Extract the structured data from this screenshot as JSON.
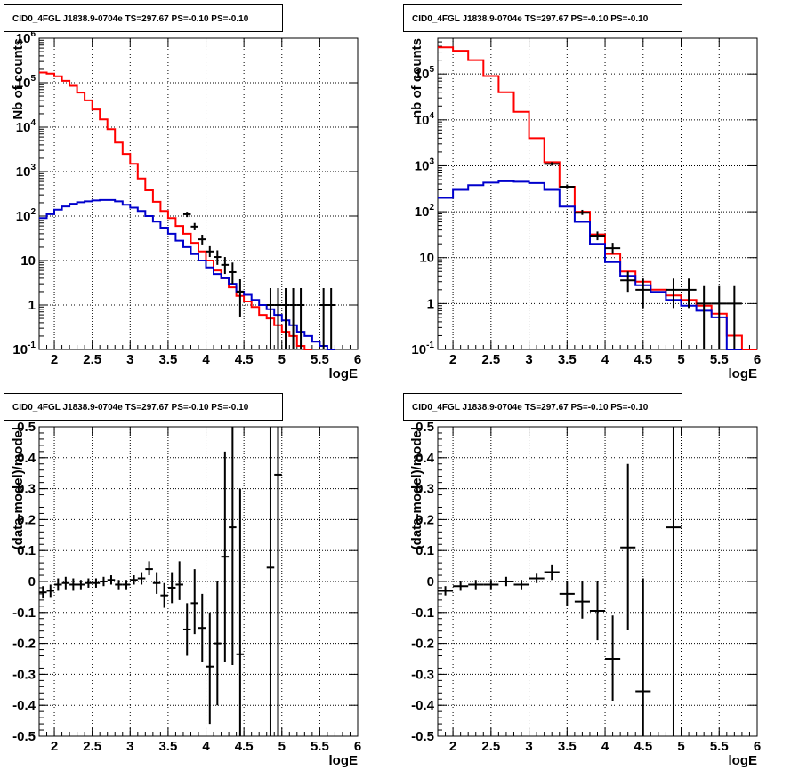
{
  "chart_data": [
    {
      "type": "line",
      "title": "CID0_4FGL J1838.9-0704e TS=297.67 PS=-0.10 PS=-0.10",
      "xlabel": "logE",
      "ylabel": "Nb of counts",
      "xlim": [
        1.8,
        6.0
      ],
      "ylim": [
        0.1,
        1000000
      ],
      "yscale": "log",
      "grid": true,
      "x_ticks": [
        "2",
        "2.5",
        "3",
        "3.5",
        "4",
        "4.5",
        "5",
        "5.5",
        "6"
      ],
      "y_ticks": [
        "10^-1",
        "1",
        "10",
        "10^2",
        "10^3",
        "10^4",
        "10^5",
        "10^6"
      ],
      "bin_edges": [
        1.8,
        1.9,
        2.0,
        2.1,
        2.2,
        2.3,
        2.4,
        2.5,
        2.6,
        2.7,
        2.8,
        2.9,
        3.0,
        3.1,
        3.2,
        3.3,
        3.4,
        3.5,
        3.6,
        3.7,
        3.8,
        3.9,
        4.0,
        4.1,
        4.2,
        4.3,
        4.4,
        4.5,
        4.6,
        4.7,
        4.8,
        4.9,
        5.0,
        5.1,
        5.2,
        5.3,
        5.4,
        5.5,
        5.6,
        5.7,
        5.8,
        5.9,
        6.0
      ],
      "series": [
        {
          "color": "#ff0000",
          "style": "histogram",
          "values": [
            170000,
            160000,
            140000,
            110000,
            85000,
            60000,
            40000,
            25000,
            15000,
            9000,
            4500,
            2500,
            1500,
            700,
            380,
            210,
            130,
            90,
            60,
            40,
            25,
            16,
            10,
            6,
            4,
            2.5,
            1.6,
            1.2,
            0.9,
            0.6,
            0.5,
            0.35,
            0.25,
            0.2,
            0.12,
            0.1,
            null,
            null,
            null,
            null,
            null,
            null
          ]
        },
        {
          "color": "#0000cc",
          "style": "histogram",
          "values": [
            90,
            110,
            140,
            165,
            190,
            205,
            215,
            225,
            230,
            230,
            215,
            180,
            155,
            130,
            100,
            75,
            55,
            40,
            28,
            20,
            14,
            10,
            7,
            5,
            4,
            3,
            2,
            1.7,
            1.3,
            1.0,
            0.8,
            0.6,
            0.45,
            0.35,
            0.25,
            0.2,
            0.15,
            0.12,
            0.1,
            null,
            null,
            null
          ]
        },
        {
          "color": "#000000",
          "style": "errorbars",
          "points": [
            {
              "x": 3.75,
              "y": 110,
              "xerr": 0.05,
              "ylo": 95,
              "yhi": 125
            },
            {
              "x": 3.85,
              "y": 58,
              "xerr": 0.05,
              "ylo": 48,
              "yhi": 70
            },
            {
              "x": 3.95,
              "y": 30,
              "xerr": 0.05,
              "ylo": 23,
              "yhi": 38
            },
            {
              "x": 4.05,
              "y": 16,
              "xerr": 0.05,
              "ylo": 12,
              "yhi": 21
            },
            {
              "x": 4.15,
              "y": 12,
              "xerr": 0.05,
              "ylo": 8,
              "yhi": 17
            },
            {
              "x": 4.25,
              "y": 8,
              "xerr": 0.05,
              "ylo": 5,
              "yhi": 12
            },
            {
              "x": 4.35,
              "y": 5.5,
              "xerr": 0.05,
              "ylo": 3,
              "yhi": 9
            },
            {
              "x": 4.45,
              "y": 2,
              "xerr": 0.05,
              "ylo": 0.55,
              "yhi": 3.8
            },
            {
              "x": 4.85,
              "y": 1,
              "xerr": 0.05,
              "ylo": 0.1,
              "yhi": 2.4
            },
            {
              "x": 4.95,
              "y": 1,
              "xerr": 0.05,
              "ylo": 0.1,
              "yhi": 2.4
            },
            {
              "x": 5.05,
              "y": 1,
              "xerr": 0.05,
              "ylo": 0.1,
              "yhi": 2.4
            },
            {
              "x": 5.15,
              "y": 1,
              "xerr": 0.05,
              "ylo": 0.1,
              "yhi": 2.4
            },
            {
              "x": 5.25,
              "y": 1,
              "xerr": 0.05,
              "ylo": 0.1,
              "yhi": 2.4
            },
            {
              "x": 5.55,
              "y": 1,
              "xerr": 0.05,
              "ylo": 0.1,
              "yhi": 2.4
            },
            {
              "x": 5.65,
              "y": 1,
              "xerr": 0.05,
              "ylo": 0.1,
              "yhi": 2.4
            }
          ]
        }
      ]
    },
    {
      "type": "line",
      "title": "CID0_4FGL J1838.9-0704e TS=297.67 PS=-0.10 PS=-0.10",
      "xlabel": "logE",
      "ylabel": "nb of counts",
      "xlim": [
        1.8,
        6.0
      ],
      "ylim": [
        0.1,
        600000
      ],
      "yscale": "log",
      "grid": true,
      "x_ticks": [
        "2",
        "2.5",
        "3",
        "3.5",
        "4",
        "4.5",
        "5",
        "5.5",
        "6"
      ],
      "y_ticks": [
        "10^-1",
        "1",
        "10",
        "10^2",
        "10^3",
        "10^4",
        "10^5"
      ],
      "bin_edges": [
        1.8,
        2.0,
        2.2,
        2.4,
        2.6,
        2.8,
        3.0,
        3.2,
        3.4,
        3.6,
        3.8,
        4.0,
        4.2,
        4.4,
        4.6,
        4.8,
        5.0,
        5.2,
        5.4,
        5.6,
        5.8,
        6.0
      ],
      "series": [
        {
          "color": "#ff0000",
          "style": "histogram",
          "values": [
            380000,
            320000,
            200000,
            90000,
            40000,
            15000,
            4000,
            1200,
            350,
            100,
            32,
            12,
            5,
            3,
            2,
            1.5,
            1.2,
            0.9,
            0.6,
            0.2,
            0.1
          ]
        },
        {
          "color": "#0000cc",
          "style": "histogram",
          "values": [
            200,
            300,
            380,
            430,
            460,
            450,
            420,
            300,
            130,
            60,
            20,
            8,
            4,
            2.5,
            1.8,
            1.2,
            0.9,
            0.7,
            0.5,
            0.1,
            null
          ]
        },
        {
          "color": "#000000",
          "style": "errorbars",
          "points": [
            {
              "x": 3.3,
              "y": 1100,
              "xerr": 0.1,
              "ylo": 1000,
              "yhi": 1200
            },
            {
              "x": 3.5,
              "y": 350,
              "xerr": 0.1,
              "ylo": 310,
              "yhi": 390
            },
            {
              "x": 3.7,
              "y": 95,
              "xerr": 0.1,
              "ylo": 85,
              "yhi": 110
            },
            {
              "x": 3.9,
              "y": 30,
              "xerr": 0.1,
              "ylo": 24,
              "yhi": 37
            },
            {
              "x": 4.1,
              "y": 16,
              "xerr": 0.1,
              "ylo": 12,
              "yhi": 21
            },
            {
              "x": 4.3,
              "y": 3.2,
              "xerr": 0.1,
              "ylo": 1.8,
              "yhi": 5
            },
            {
              "x": 4.5,
              "y": 2,
              "xerr": 0.1,
              "ylo": 0.8,
              "yhi": 3.5
            },
            {
              "x": 4.9,
              "y": 2,
              "xerr": 0.1,
              "ylo": 0.8,
              "yhi": 3.5
            },
            {
              "x": 5.1,
              "y": 2,
              "xerr": 0.1,
              "ylo": 0.8,
              "yhi": 3.5
            },
            {
              "x": 5.3,
              "y": 1,
              "xerr": 0.1,
              "ylo": 0.1,
              "yhi": 2.4
            },
            {
              "x": 5.5,
              "y": 1,
              "xerr": 0.1,
              "ylo": 0.1,
              "yhi": 2.4
            },
            {
              "x": 5.7,
              "y": 1,
              "xerr": 0.1,
              "ylo": 0.1,
              "yhi": 2.4
            }
          ]
        }
      ]
    },
    {
      "type": "scatter",
      "title": "CID0_4FGL J1838.9-0704e TS=297.67 PS=-0.10 PS=-0.10",
      "xlabel": "logE",
      "ylabel": "(data-model)/model",
      "xlim": [
        1.8,
        6.0
      ],
      "ylim": [
        -0.5,
        0.5
      ],
      "grid": true,
      "x_ticks": [
        "2",
        "2.5",
        "3",
        "3.5",
        "4",
        "4.5",
        "5",
        "5.5",
        "6"
      ],
      "y_ticks": [
        "-0.5",
        "-0.4",
        "-0.3",
        "-0.2",
        "-0.1",
        "0",
        "0.1",
        "0.2",
        "0.3",
        "0.4",
        "0.5"
      ],
      "series": [
        {
          "color": "#000000",
          "style": "errorbars",
          "points": [
            {
              "x": 1.85,
              "y": -0.035,
              "xerr": 0.05,
              "ylo": -0.055,
              "yhi": -0.015
            },
            {
              "x": 1.95,
              "y": -0.03,
              "xerr": 0.05,
              "ylo": -0.05,
              "yhi": -0.01
            },
            {
              "x": 2.05,
              "y": -0.01,
              "xerr": 0.05,
              "ylo": -0.03,
              "yhi": 0.01
            },
            {
              "x": 2.15,
              "y": -0.005,
              "xerr": 0.05,
              "ylo": -0.025,
              "yhi": 0.015
            },
            {
              "x": 2.25,
              "y": -0.01,
              "xerr": 0.05,
              "ylo": -0.03,
              "yhi": 0.01
            },
            {
              "x": 2.35,
              "y": -0.01,
              "xerr": 0.05,
              "ylo": -0.025,
              "yhi": 0.005
            },
            {
              "x": 2.45,
              "y": -0.005,
              "xerr": 0.05,
              "ylo": -0.02,
              "yhi": 0.01
            },
            {
              "x": 2.55,
              "y": -0.005,
              "xerr": 0.05,
              "ylo": -0.02,
              "yhi": 0.01
            },
            {
              "x": 2.65,
              "y": 0.0,
              "xerr": 0.05,
              "ylo": -0.015,
              "yhi": 0.015
            },
            {
              "x": 2.75,
              "y": 0.005,
              "xerr": 0.05,
              "ylo": -0.01,
              "yhi": 0.02
            },
            {
              "x": 2.85,
              "y": -0.01,
              "xerr": 0.05,
              "ylo": -0.025,
              "yhi": 0.005
            },
            {
              "x": 2.95,
              "y": -0.01,
              "xerr": 0.05,
              "ylo": -0.025,
              "yhi": 0.005
            },
            {
              "x": 3.05,
              "y": 0.005,
              "xerr": 0.05,
              "ylo": -0.01,
              "yhi": 0.02
            },
            {
              "x": 3.15,
              "y": 0.01,
              "xerr": 0.05,
              "ylo": -0.01,
              "yhi": 0.03
            },
            {
              "x": 3.25,
              "y": 0.04,
              "xerr": 0.05,
              "ylo": 0.02,
              "yhi": 0.065
            },
            {
              "x": 3.35,
              "y": -0.005,
              "xerr": 0.05,
              "ylo": -0.04,
              "yhi": 0.03
            },
            {
              "x": 3.45,
              "y": -0.045,
              "xerr": 0.05,
              "ylo": -0.085,
              "yhi": -0.005
            },
            {
              "x": 3.55,
              "y": -0.02,
              "xerr": 0.05,
              "ylo": -0.07,
              "yhi": 0.03
            },
            {
              "x": 3.65,
              "y": -0.01,
              "xerr": 0.05,
              "ylo": -0.06,
              "yhi": 0.065
            },
            {
              "x": 3.75,
              "y": -0.155,
              "xerr": 0.05,
              "ylo": -0.24,
              "yhi": -0.07
            },
            {
              "x": 3.85,
              "y": -0.07,
              "xerr": 0.05,
              "ylo": -0.17,
              "yhi": 0.04
            },
            {
              "x": 3.95,
              "y": -0.15,
              "xerr": 0.05,
              "ylo": -0.26,
              "yhi": -0.04
            },
            {
              "x": 4.05,
              "y": -0.275,
              "xerr": 0.05,
              "ylo": -0.46,
              "yhi": -0.1
            },
            {
              "x": 4.15,
              "y": -0.2,
              "xerr": 0.05,
              "ylo": -0.4,
              "yhi": 0.0
            },
            {
              "x": 4.25,
              "y": 0.08,
              "xerr": 0.05,
              "ylo": -0.26,
              "yhi": 0.42
            },
            {
              "x": 4.35,
              "y": 0.175,
              "xerr": 0.05,
              "ylo": -0.27,
              "yhi": 0.5
            },
            {
              "x": 4.45,
              "y": -0.235,
              "xerr": 0.05,
              "ylo": -0.5,
              "yhi": 0.3
            },
            {
              "x": 4.85,
              "y": 0.045,
              "xerr": 0.05,
              "ylo": -0.5,
              "yhi": 0.5
            },
            {
              "x": 4.95,
              "y": 0.345,
              "xerr": 0.05,
              "ylo": -0.5,
              "yhi": 0.5
            }
          ]
        }
      ]
    },
    {
      "type": "scatter",
      "title": "CID0_4FGL J1838.9-0704e TS=297.67 PS=-0.10 PS=-0.10",
      "xlabel": "logE",
      "ylabel": "(data-model)/model",
      "xlim": [
        1.8,
        6.0
      ],
      "ylim": [
        -0.5,
        0.5
      ],
      "grid": true,
      "x_ticks": [
        "2",
        "2.5",
        "3",
        "3.5",
        "4",
        "4.5",
        "5",
        "5.5",
        "6"
      ],
      "y_ticks": [
        "-0.5",
        "-0.4",
        "-0.3",
        "-0.2",
        "-0.1",
        "0",
        "0.1",
        "0.2",
        "0.3",
        "0.4",
        "0.5"
      ],
      "series": [
        {
          "color": "#000000",
          "style": "errorbars",
          "points": [
            {
              "x": 1.9,
              "y": -0.03,
              "xerr": 0.1,
              "ylo": -0.045,
              "yhi": -0.015
            },
            {
              "x": 2.1,
              "y": -0.015,
              "xerr": 0.1,
              "ylo": -0.03,
              "yhi": 0.0
            },
            {
              "x": 2.3,
              "y": -0.01,
              "xerr": 0.1,
              "ylo": -0.025,
              "yhi": 0.005
            },
            {
              "x": 2.5,
              "y": -0.01,
              "xerr": 0.1,
              "ylo": -0.025,
              "yhi": 0.005
            },
            {
              "x": 2.7,
              "y": 0.0,
              "xerr": 0.1,
              "ylo": -0.015,
              "yhi": 0.015
            },
            {
              "x": 2.9,
              "y": -0.01,
              "xerr": 0.1,
              "ylo": -0.025,
              "yhi": 0.005
            },
            {
              "x": 3.1,
              "y": 0.01,
              "xerr": 0.1,
              "ylo": -0.005,
              "yhi": 0.025
            },
            {
              "x": 3.3,
              "y": 0.03,
              "xerr": 0.1,
              "ylo": 0.005,
              "yhi": 0.055
            },
            {
              "x": 3.5,
              "y": -0.04,
              "xerr": 0.1,
              "ylo": -0.08,
              "yhi": 0.0
            },
            {
              "x": 3.7,
              "y": -0.065,
              "xerr": 0.1,
              "ylo": -0.12,
              "yhi": 0.0
            },
            {
              "x": 3.9,
              "y": -0.095,
              "xerr": 0.1,
              "ylo": -0.19,
              "yhi": 0.0
            },
            {
              "x": 4.1,
              "y": -0.25,
              "xerr": 0.1,
              "ylo": -0.385,
              "yhi": -0.11
            },
            {
              "x": 4.3,
              "y": 0.11,
              "xerr": 0.1,
              "ylo": -0.155,
              "yhi": 0.38
            },
            {
              "x": 4.5,
              "y": -0.355,
              "xerr": 0.1,
              "ylo": -0.5,
              "yhi": 0.01
            },
            {
              "x": 4.9,
              "y": 0.175,
              "xerr": 0.1,
              "ylo": -0.5,
              "yhi": 0.5
            }
          ]
        }
      ]
    }
  ]
}
